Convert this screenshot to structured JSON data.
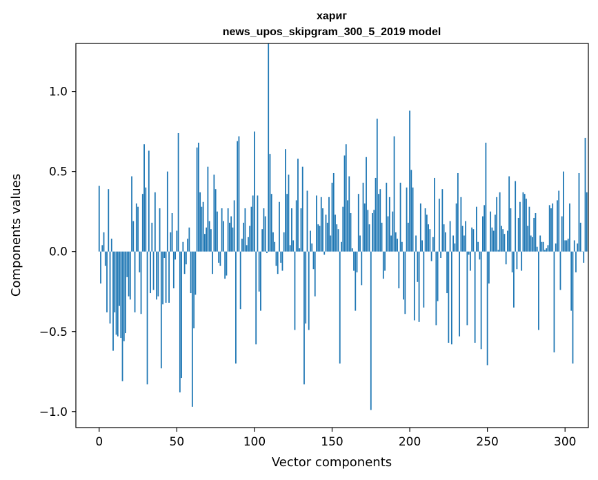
{
  "chart_data": {
    "type": "bar",
    "title_line1": "хариг",
    "title_line2": "news_upos_skipgram_300_5_2019 model",
    "xlabel": "Vector components",
    "ylabel": "Components values",
    "xlim": [
      -15,
      315
    ],
    "ylim": [
      -1.1,
      1.3
    ],
    "x_ticks": [
      0,
      50,
      100,
      150,
      200,
      250,
      300
    ],
    "x_tick_labels": [
      "0",
      "50",
      "100",
      "150",
      "200",
      "250",
      "300"
    ],
    "y_ticks": [
      -1.0,
      -0.5,
      0.0,
      0.5,
      1.0
    ],
    "y_tick_labels": [
      "−1.0",
      "−0.5",
      "0.0",
      "0.5",
      "1.0"
    ],
    "bar_color": "#1f77b4",
    "values": [
      0.41,
      -0.2,
      0.04,
      0.12,
      -0.09,
      -0.38,
      0.39,
      -0.45,
      0.08,
      -0.62,
      -0.38,
      -0.52,
      -0.53,
      -0.34,
      -0.54,
      -0.81,
      -0.56,
      -0.51,
      -0.16,
      -0.28,
      -0.3,
      0.47,
      0.19,
      -0.38,
      0.3,
      0.28,
      -0.13,
      -0.39,
      0.36,
      0.67,
      0.4,
      -0.83,
      0.63,
      -0.26,
      0.18,
      -0.24,
      0.37,
      -0.3,
      -0.28,
      0.27,
      -0.73,
      -0.33,
      -0.04,
      -0.32,
      0.5,
      -0.32,
      0.12,
      0.24,
      -0.23,
      -0.05,
      0.13,
      0.74,
      -0.88,
      -0.79,
      0.06,
      -0.14,
      -0.08,
      0.08,
      0.15,
      -0.26,
      -0.97,
      -0.48,
      -0.27,
      0.65,
      0.68,
      0.37,
      0.28,
      0.31,
      0.11,
      0.15,
      0.53,
      0.19,
      0.14,
      -0.14,
      0.48,
      0.39,
      0.25,
      -0.07,
      -0.09,
      0.27,
      0.19,
      -0.17,
      -0.15,
      0.27,
      0.18,
      0.22,
      0.15,
      0.32,
      -0.7,
      0.69,
      0.72,
      -0.36,
      0.08,
      0.18,
      0.27,
      0.04,
      0.09,
      0.16,
      0.28,
      0.35,
      0.75,
      -0.58,
      0.35,
      -0.25,
      -0.37,
      0.14,
      0.27,
      0.22,
      -0.01,
      1.3,
      0.61,
      0.36,
      0.12,
      0.06,
      -0.09,
      -0.14,
      0.31,
      -0.07,
      -0.12,
      0.12,
      0.64,
      0.36,
      0.48,
      0.04,
      0.27,
      0.07,
      -0.49,
      0.32,
      0.58,
      0.02,
      0.27,
      0.53,
      -0.83,
      -0.45,
      0.38,
      -0.49,
      0.13,
      0.05,
      -0.11,
      -0.28,
      0.35,
      0.17,
      0.16,
      0.34,
      0.27,
      -0.02,
      0.23,
      0.18,
      0.34,
      0.1,
      0.43,
      0.49,
      0.23,
      0.17,
      0.14,
      -0.7,
      0.06,
      0.28,
      0.6,
      0.67,
      0.32,
      0.47,
      0.24,
      0.02,
      -0.12,
      -0.37,
      -0.13,
      0.36,
      0.1,
      -0.21,
      0.43,
      0.3,
      0.59,
      0.26,
      0.17,
      -0.99,
      0.24,
      0.26,
      0.46,
      0.83,
      0.36,
      0.39,
      0.18,
      -0.17,
      -0.12,
      0.43,
      0.22,
      0.34,
      0.1,
      0.25,
      0.72,
      0.12,
      0.08,
      -0.23,
      0.43,
      0.06,
      -0.3,
      -0.39,
      0.4,
      0.18,
      0.88,
      0.51,
      0.4,
      -0.43,
      0.1,
      -0.19,
      -0.44,
      0.3,
      0.07,
      -0.35,
      0.27,
      0.23,
      0.17,
      0.14,
      -0.06,
      0.09,
      0.46,
      -0.46,
      -0.31,
      0.33,
      -0.04,
      0.39,
      0.17,
      0.12,
      -0.26,
      -0.57,
      0.19,
      -0.58,
      0.1,
      0.05,
      0.3,
      0.49,
      -0.53,
      0.34,
      0.16,
      0.1,
      0.19,
      -0.46,
      -0.02,
      -0.12,
      0.15,
      0.14,
      -0.57,
      0.28,
      0.06,
      -0.05,
      -0.61,
      0.22,
      0.29,
      0.68,
      -0.71,
      -0.2,
      0.25,
      0.15,
      0.13,
      0.23,
      0.34,
      0.01,
      0.37,
      0.16,
      0.14,
      0.11,
      -0.08,
      0.13,
      0.47,
      0.27,
      -0.13,
      -0.35,
      0.44,
      -0.11,
      0.21,
      0.31,
      -0.12,
      0.37,
      0.36,
      0.33,
      0.16,
      0.28,
      0.1,
      0.09,
      0.21,
      0.24,
      0.03,
      -0.49,
      0.1,
      0.06,
      0.06,
      0.01,
      0.02,
      0.04,
      0.29,
      0.27,
      0.3,
      -0.63,
      0.05,
      0.32,
      0.38,
      -0.24,
      0.22,
      0.5,
      0.07,
      0.07,
      0.08,
      0.3,
      -0.37,
      -0.7,
      0.07,
      -0.13,
      0.05,
      0.49,
      0.18,
      0.0,
      -0.07,
      0.71,
      0.37
    ]
  }
}
